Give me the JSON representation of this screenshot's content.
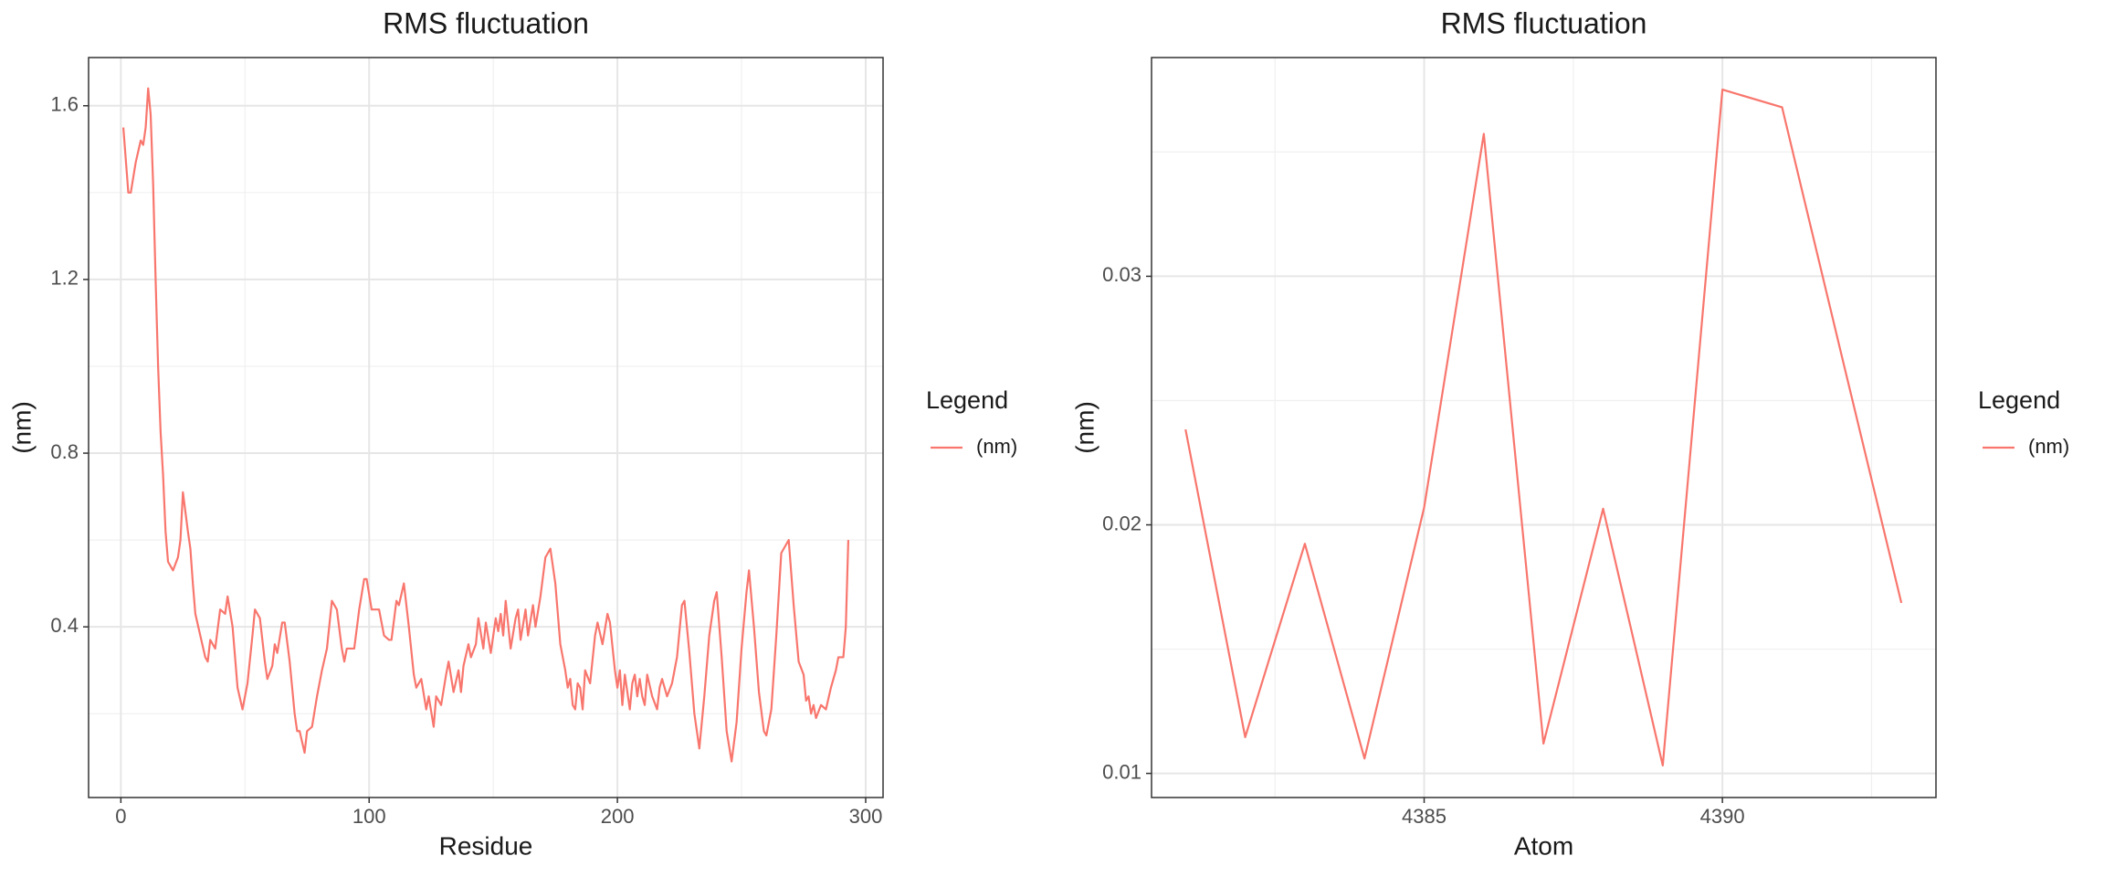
{
  "chart_data": [
    {
      "type": "line",
      "title": "RMS fluctuation",
      "x_label": "Residue",
      "y_label": "(nm)",
      "legend_title": "Legend",
      "x": [
        1,
        3,
        4,
        6,
        8,
        9,
        10,
        11,
        12,
        13,
        14,
        15,
        16,
        17,
        18,
        19,
        21,
        23,
        24,
        25,
        27,
        28,
        29,
        30,
        32,
        34,
        35,
        36,
        38,
        40,
        42,
        43,
        45,
        47,
        49,
        51,
        53,
        54,
        56,
        58,
        59,
        61,
        62,
        63,
        65,
        66,
        68,
        70,
        71,
        72,
        74,
        75,
        77,
        79,
        81,
        83,
        85,
        87,
        89,
        90,
        91,
        94,
        96,
        98,
        99,
        101,
        104,
        106,
        108,
        109,
        111,
        112,
        114,
        116,
        118,
        119,
        121,
        123,
        124,
        126,
        127,
        129,
        131,
        132,
        134,
        136,
        137,
        138,
        140,
        141,
        143,
        144,
        146,
        147,
        149,
        151,
        152,
        153,
        154,
        155,
        157,
        159,
        160,
        161,
        163,
        164,
        166,
        167,
        169,
        171,
        173,
        175,
        177,
        179,
        180,
        181,
        182,
        183,
        184,
        185,
        186,
        187,
        189,
        191,
        192,
        194,
        196,
        197,
        199,
        200,
        201,
        202,
        203,
        205,
        206,
        207,
        208,
        209,
        210,
        211,
        212,
        214,
        216,
        217,
        218,
        220,
        222,
        224,
        226,
        227,
        229,
        231,
        233,
        235,
        237,
        239,
        240,
        242,
        244,
        246,
        248,
        250,
        252,
        253,
        255,
        257,
        259,
        260,
        262,
        264,
        266,
        268,
        269,
        271,
        273,
        275,
        276,
        277,
        278,
        279,
        280,
        282,
        284,
        286,
        288,
        289,
        291,
        292,
        293
      ],
      "series": [
        {
          "name": "(nm)",
          "color": "#f8766d",
          "values": [
            1.55,
            1.4,
            1.4,
            1.47,
            1.52,
            1.51,
            1.55,
            1.64,
            1.58,
            1.42,
            1.2,
            1.0,
            0.85,
            0.75,
            0.62,
            0.55,
            0.53,
            0.56,
            0.6,
            0.71,
            0.62,
            0.58,
            0.5,
            0.43,
            0.38,
            0.33,
            0.32,
            0.37,
            0.35,
            0.44,
            0.43,
            0.47,
            0.4,
            0.26,
            0.21,
            0.27,
            0.38,
            0.44,
            0.42,
            0.32,
            0.28,
            0.31,
            0.36,
            0.34,
            0.41,
            0.41,
            0.32,
            0.2,
            0.16,
            0.16,
            0.11,
            0.16,
            0.17,
            0.24,
            0.3,
            0.35,
            0.46,
            0.44,
            0.35,
            0.32,
            0.35,
            0.35,
            0.44,
            0.51,
            0.51,
            0.44,
            0.44,
            0.38,
            0.37,
            0.37,
            0.46,
            0.45,
            0.5,
            0.4,
            0.29,
            0.26,
            0.28,
            0.21,
            0.24,
            0.17,
            0.24,
            0.22,
            0.29,
            0.32,
            0.25,
            0.3,
            0.25,
            0.31,
            0.36,
            0.33,
            0.36,
            0.42,
            0.35,
            0.41,
            0.34,
            0.42,
            0.39,
            0.43,
            0.38,
            0.46,
            0.35,
            0.42,
            0.44,
            0.37,
            0.44,
            0.38,
            0.45,
            0.4,
            0.47,
            0.56,
            0.58,
            0.5,
            0.36,
            0.3,
            0.26,
            0.28,
            0.22,
            0.21,
            0.27,
            0.26,
            0.21,
            0.3,
            0.27,
            0.38,
            0.41,
            0.36,
            0.43,
            0.41,
            0.3,
            0.26,
            0.3,
            0.22,
            0.29,
            0.21,
            0.27,
            0.29,
            0.24,
            0.28,
            0.24,
            0.22,
            0.29,
            0.24,
            0.21,
            0.26,
            0.28,
            0.24,
            0.27,
            0.33,
            0.45,
            0.46,
            0.34,
            0.2,
            0.12,
            0.24,
            0.38,
            0.46,
            0.48,
            0.33,
            0.16,
            0.09,
            0.18,
            0.35,
            0.48,
            0.53,
            0.4,
            0.25,
            0.16,
            0.15,
            0.21,
            0.38,
            0.57,
            0.59,
            0.6,
            0.45,
            0.32,
            0.29,
            0.23,
            0.24,
            0.2,
            0.22,
            0.19,
            0.22,
            0.21,
            0.26,
            0.3,
            0.33,
            0.33,
            0.4,
            0.6
          ]
        }
      ],
      "xlim": [
        -13,
        307
      ],
      "xticks": [
        0,
        100,
        200,
        300
      ],
      "ylim": [
        0.007,
        1.711
      ],
      "yticks": [
        0.4,
        0.8,
        1.2,
        1.6
      ],
      "grid": true,
      "minor_grid": true,
      "legend": "right"
    },
    {
      "type": "line",
      "title": "RMS fluctuation",
      "x_label": "Atom",
      "y_label": "(nm)",
      "legend_title": "Legend",
      "x": [
        4381,
        4382,
        4383,
        4384,
        4385,
        4386,
        4387,
        4388,
        4389,
        4390,
        4391,
        4392,
        4393
      ],
      "series": [
        {
          "name": "(nm)",
          "color": "#f8766d",
          "values": [
            0.02384,
            0.01146,
            0.01924,
            0.0106,
            0.0207,
            0.03573,
            0.0112,
            0.02065,
            0.01032,
            0.03751,
            0.0368,
            0.0268,
            0.01686
          ]
        }
      ],
      "xlim": [
        4380.43,
        4393.58
      ],
      "xticks": [
        4385,
        4390
      ],
      "ylim": [
        0.00903,
        0.0388
      ],
      "yticks": [
        0.01,
        0.02,
        0.03
      ],
      "grid": true,
      "minor_grid": true,
      "legend": "right"
    }
  ]
}
